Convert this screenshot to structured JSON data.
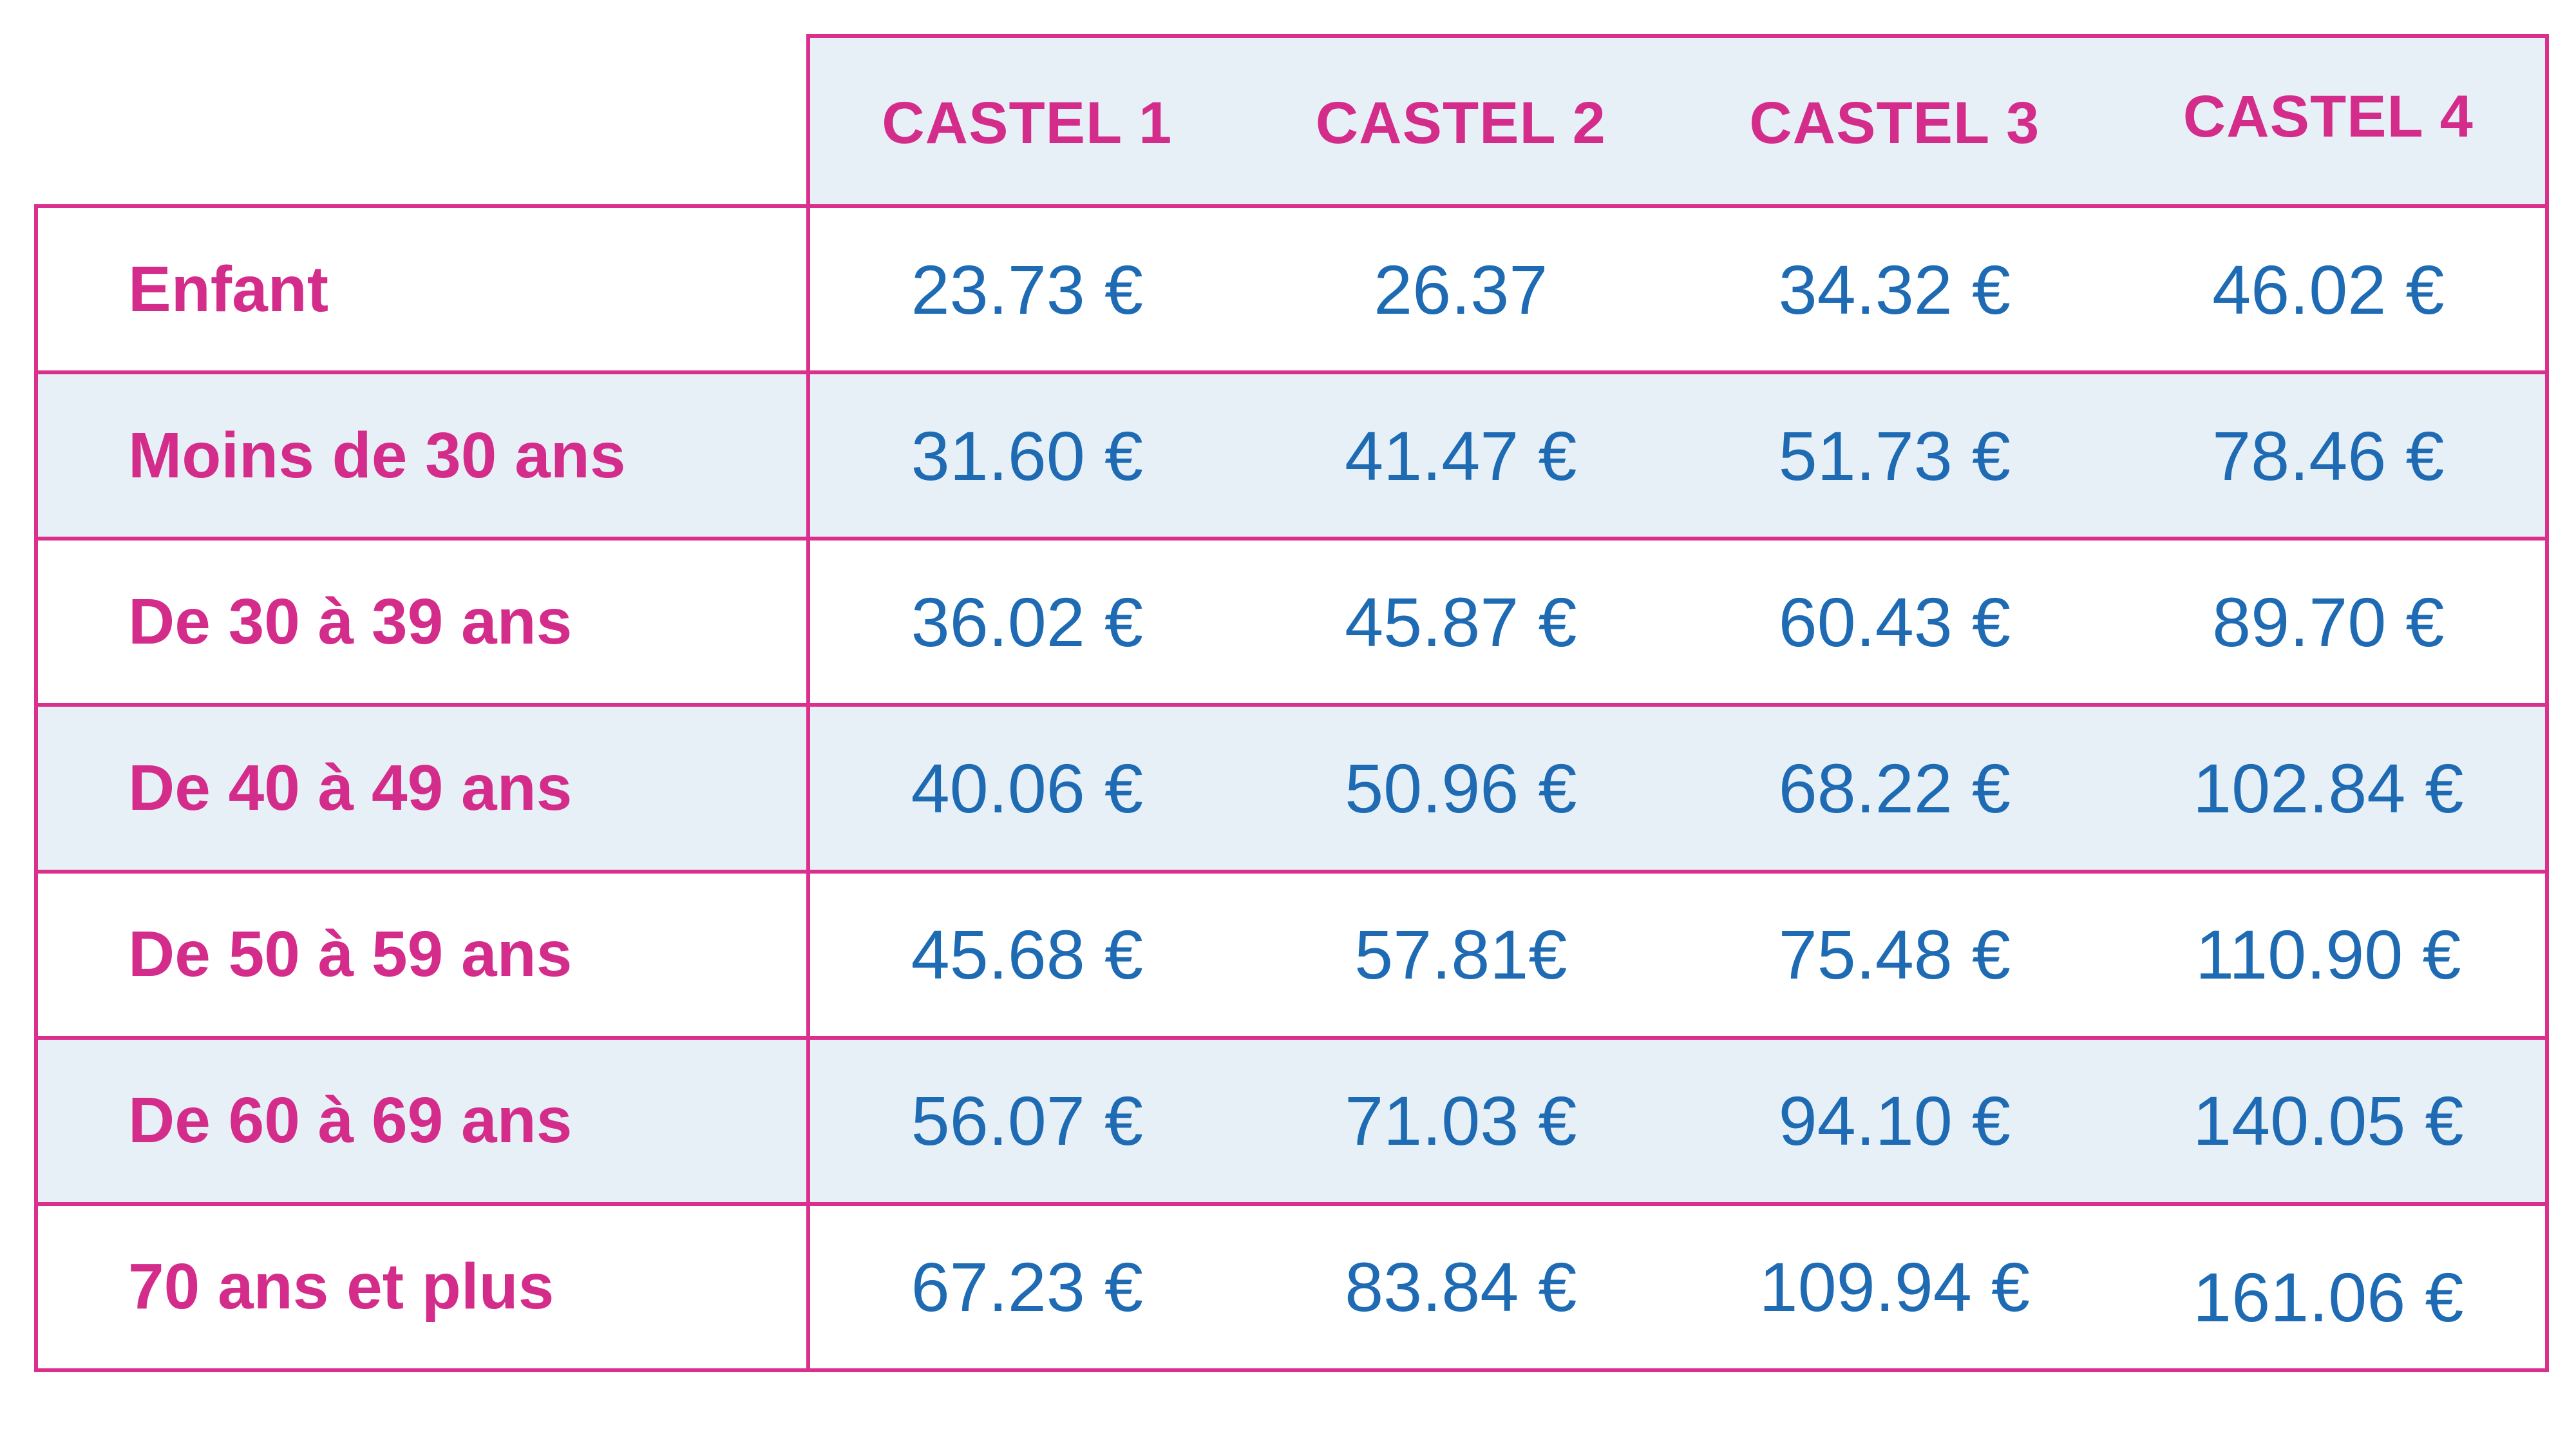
{
  "colors": {
    "accent_pink": "#d42c8a",
    "border_pink": "#da2f8c",
    "value_blue": "#1e6bb4",
    "row_alt_blue": "#e7f0f7",
    "row_white": "#ffffff"
  },
  "header": {
    "columns": [
      "CASTEL 1",
      "CASTEL 2",
      "CASTEL 3",
      "CASTEL 4"
    ]
  },
  "body": {
    "rows": [
      {
        "label": "Enfant",
        "values": [
          "23.73 €",
          "26.37",
          "34.32 €",
          "46.02 €"
        ]
      },
      {
        "label": "Moins de 30 ans",
        "values": [
          "31.60 €",
          "41.47 €",
          "51.73 €",
          "78.46 €"
        ]
      },
      {
        "label": "De 30 à 39 ans",
        "values": [
          "36.02 €",
          "45.87 €",
          "60.43 €",
          "89.70 €"
        ]
      },
      {
        "label": "De 40 à 49 ans",
        "values": [
          "40.06 €",
          "50.96 €",
          "68.22 €",
          "102.84 €"
        ]
      },
      {
        "label": "De 50 à 59 ans",
        "values": [
          "45.68 €",
          "57.81€",
          "75.48 €",
          "110.90 €"
        ]
      },
      {
        "label": "De 60 à 69 ans",
        "values": [
          "56.07 €",
          "71.03 €",
          "94.10 €",
          "140.05 €"
        ]
      },
      {
        "label": "70 ans et plus",
        "values": [
          "67.23 €",
          "83.84 €",
          "109.94 €",
          "161.06 €"
        ]
      }
    ]
  },
  "chart_data": {
    "type": "table",
    "columns": [
      "CASTEL 1",
      "CASTEL 2",
      "CASTEL 3",
      "CASTEL 4"
    ],
    "row_labels": [
      "Enfant",
      "Moins de 30 ans",
      "De 30 à 39 ans",
      "De 40 à 49 ans",
      "De 50 à 59 ans",
      "De 60 à 69 ans",
      "70 ans et plus"
    ],
    "values_eur": [
      [
        23.73,
        26.37,
        34.32,
        46.02
      ],
      [
        31.6,
        41.47,
        51.73,
        78.46
      ],
      [
        36.02,
        45.87,
        60.43,
        89.7
      ],
      [
        40.06,
        50.96,
        68.22,
        102.84
      ],
      [
        45.68,
        57.81,
        75.48,
        110.9
      ],
      [
        56.07,
        71.03,
        94.1,
        140.05
      ],
      [
        67.23,
        83.84,
        109.94,
        161.06
      ]
    ],
    "unit": "€",
    "layout": "row labels left in pink bold; prices centered in blue; alternating white and pale-blue row backgrounds; magenta grid borders"
  }
}
